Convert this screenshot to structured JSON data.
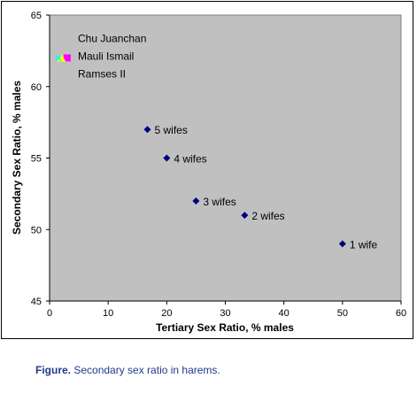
{
  "chart_data": {
    "type": "scatter",
    "title": "",
    "xlabel": "Tertiary Sex Ratio, % males",
    "ylabel": "Secondary Sex Ratio, % males",
    "xlim": [
      0,
      60
    ],
    "ylim": [
      45,
      65
    ],
    "xticks": [
      0,
      10,
      20,
      30,
      40,
      50,
      60
    ],
    "yticks": [
      45,
      50,
      55,
      60,
      65
    ],
    "grid": false,
    "plot_background": "#c0c0c0",
    "points": [
      {
        "label": "1 wife",
        "x": 50,
        "y": 49,
        "marker": "diamond",
        "color": "#000080"
      },
      {
        "label": "2 wifes",
        "x": 33.3,
        "y": 51,
        "marker": "diamond",
        "color": "#000080"
      },
      {
        "label": "3 wifes",
        "x": 25,
        "y": 52,
        "marker": "diamond",
        "color": "#000080"
      },
      {
        "label": "4 wifes",
        "x": 20,
        "y": 55,
        "marker": "diamond",
        "color": "#000080"
      },
      {
        "label": "5 wifes",
        "x": 16.7,
        "y": 57,
        "marker": "diamond",
        "color": "#000080"
      },
      {
        "label": "Chu Juanchan",
        "x": 3,
        "y": 62,
        "marker": "square",
        "color": "#ff00ff"
      },
      {
        "label": "Mauli Ismail",
        "x": 2,
        "y": 62,
        "marker": "triangle",
        "color": "#ffff00"
      },
      {
        "label": "Ramses II",
        "x": 1.5,
        "y": 62,
        "marker": "x",
        "color": "#00ffff"
      }
    ]
  },
  "caption": {
    "label": "Figure.",
    "text": " Secondary sex ratio in harems."
  }
}
